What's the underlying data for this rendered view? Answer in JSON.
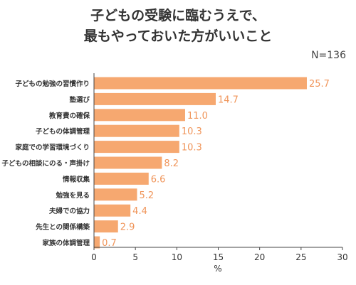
{
  "header": {
    "title_line1": "子どもの受験に臨むうえで、",
    "title_line2": "最もやっておいた方がいいこと",
    "sample_size": "N=136"
  },
  "colors": {
    "bar": "#f6a870",
    "value_text": "#f0955a",
    "axis": "#444444",
    "grid": "#d9d9d9"
  },
  "chart_data": {
    "type": "bar",
    "orientation": "horizontal",
    "categories": [
      "子どもの勉強の習慣作り",
      "塾選び",
      "教育費の確保",
      "子どもの体調管理",
      "家庭での学習環境づくり",
      "子どもの相談にのる・声掛け",
      "情報収集",
      "勉強を見る",
      "夫婦での協力",
      "先生との関係構築",
      "家族の体調管理"
    ],
    "values": [
      25.7,
      14.7,
      11.0,
      10.3,
      10.3,
      8.2,
      6.6,
      5.2,
      4.4,
      2.9,
      0.7
    ],
    "value_labels": [
      "25.7",
      "14.7",
      "11.0",
      "10.3",
      "10.3",
      "8.2",
      "6.6",
      "5.2",
      "4.4",
      "2.9",
      "0.7"
    ],
    "xlabel": "%",
    "xlim": [
      0,
      30
    ],
    "xticks": [
      0,
      5,
      10,
      15,
      20,
      25,
      30
    ],
    "grid": false
  }
}
